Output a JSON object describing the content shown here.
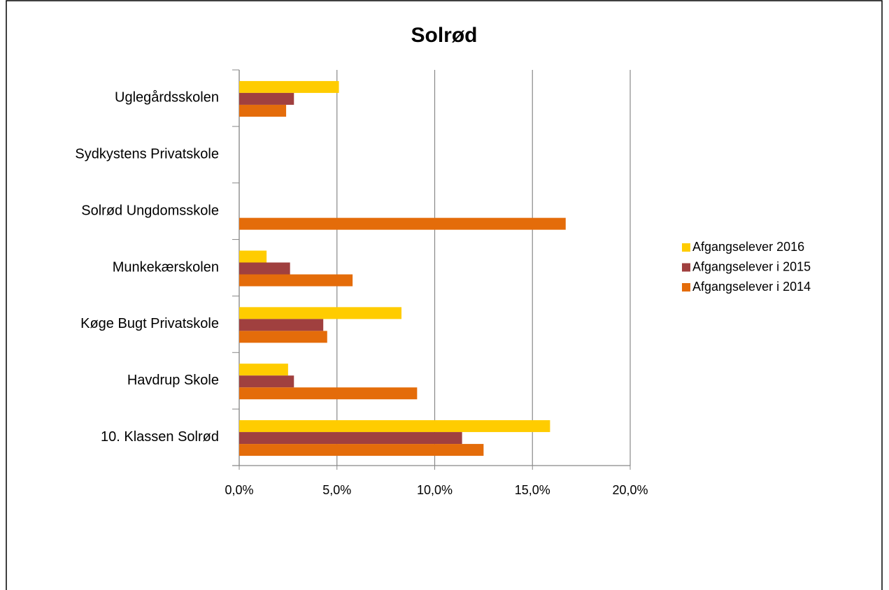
{
  "chart_data": {
    "type": "hbar",
    "title": "Solrød",
    "categories": [
      "Uglegårdsskolen",
      "Sydkystens Privatskole",
      "Solrød Ungdomsskole",
      "Munkekærskolen",
      "Køge Bugt Privatskole",
      "Havdrup Skole",
      "10.  Klassen Solrød"
    ],
    "series": [
      {
        "name": "Afgangselever 2016",
        "color": "#ffcc00",
        "values": [
          5.1,
          null,
          null,
          1.4,
          8.3,
          2.5,
          15.9
        ]
      },
      {
        "name": "Afgangselever i 2015",
        "color": "#a0403f",
        "values": [
          2.8,
          null,
          null,
          2.6,
          4.3,
          2.8,
          11.4
        ]
      },
      {
        "name": "Afgangselever i 2014",
        "color": "#e46c0a",
        "values": [
          2.4,
          null,
          16.7,
          5.8,
          4.5,
          9.1,
          12.5
        ]
      }
    ],
    "xlim": [
      0,
      20
    ],
    "xticks": [
      {
        "value": 0,
        "label": "0,0%"
      },
      {
        "value": 5,
        "label": "5,0%"
      },
      {
        "value": 10,
        "label": "10,0%"
      },
      {
        "value": 15,
        "label": "15,0%"
      },
      {
        "value": 20,
        "label": "20,0%"
      }
    ],
    "grid": true,
    "legend": "right"
  }
}
